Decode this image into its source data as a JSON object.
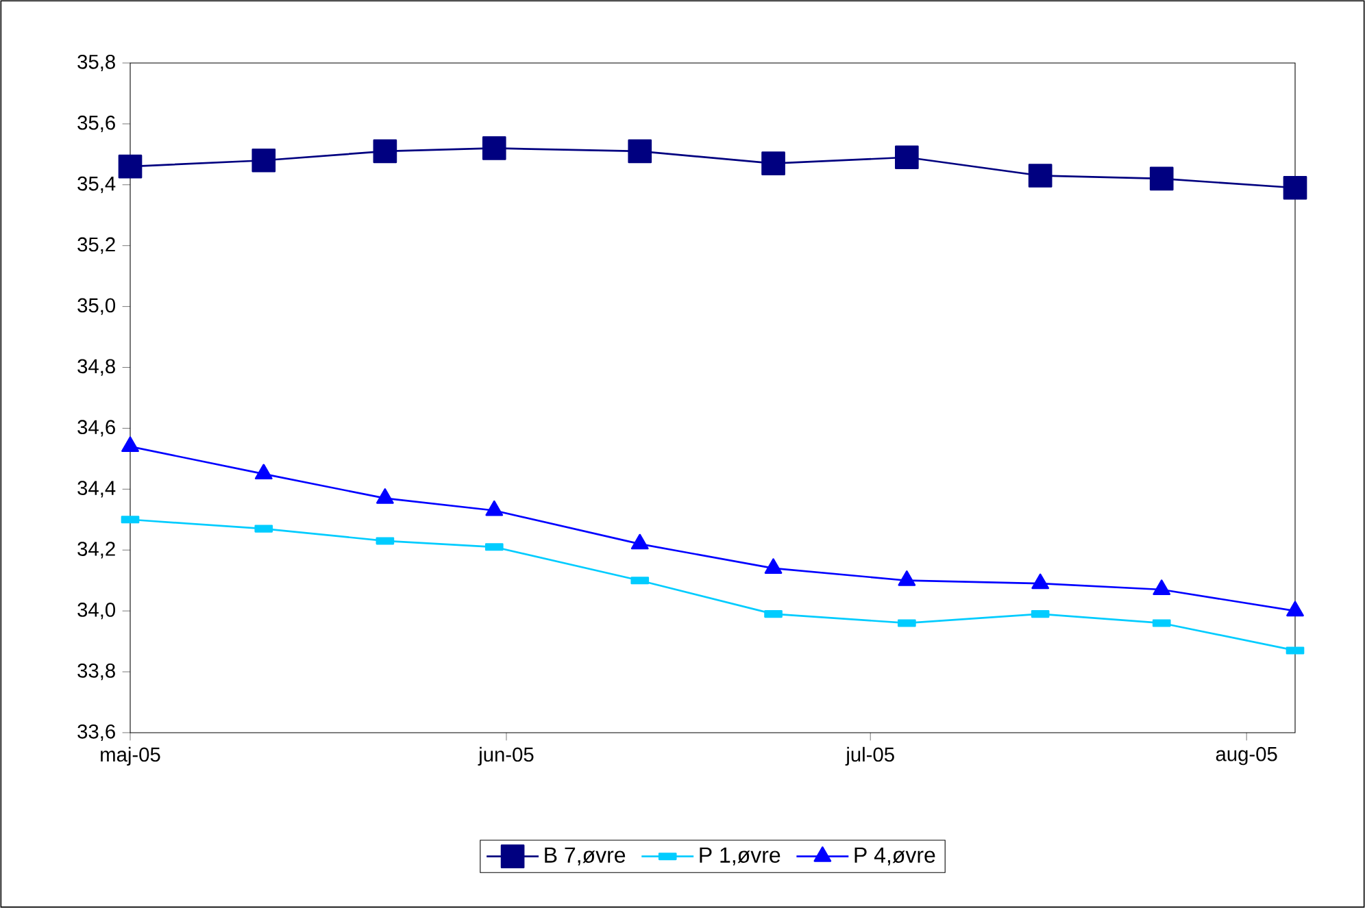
{
  "chart_data": {
    "type": "line",
    "x": [
      "2005-05-01",
      "2005-05-12",
      "2005-05-22",
      "2005-05-31",
      "2005-06-12",
      "2005-06-23",
      "2005-07-04",
      "2005-07-15",
      "2005-07-25",
      "2005-08-05"
    ],
    "series": [
      {
        "name": "B 7,øvre",
        "color": "#000080",
        "marker": "square",
        "values": [
          35.46,
          35.48,
          35.51,
          35.52,
          35.51,
          35.47,
          35.49,
          35.43,
          35.42,
          35.39
        ]
      },
      {
        "name": "P 1,øvre",
        "color": "#00ccff",
        "marker": "square",
        "values": [
          34.3,
          34.27,
          34.23,
          34.21,
          34.1,
          33.99,
          33.96,
          33.99,
          33.96,
          33.87
        ]
      },
      {
        "name": "P 4,øvre",
        "color": "#0000ff",
        "marker": "triangle",
        "values": [
          34.54,
          34.45,
          34.37,
          34.33,
          34.22,
          34.14,
          34.1,
          34.09,
          34.07,
          34.0
        ]
      }
    ],
    "xlim": [
      "2005-05-01",
      "2005-08-05"
    ],
    "xticks": [
      {
        "value": "2005-05-01",
        "label": "maj-05"
      },
      {
        "value": "2005-06-01",
        "label": "jun-05"
      },
      {
        "value": "2005-07-01",
        "label": "jul-05"
      },
      {
        "value": "2005-08-01",
        "label": "aug-05"
      }
    ],
    "ylim": [
      33.6,
      35.8
    ],
    "yticks": [
      {
        "value": 33.6,
        "label": "33,6"
      },
      {
        "value": 33.8,
        "label": "33,8"
      },
      {
        "value": 34.0,
        "label": "34,0"
      },
      {
        "value": 34.2,
        "label": "34,2"
      },
      {
        "value": 34.4,
        "label": "34,4"
      },
      {
        "value": 34.6,
        "label": "34,6"
      },
      {
        "value": 34.8,
        "label": "34,8"
      },
      {
        "value": 35.0,
        "label": "35,0"
      },
      {
        "value": 35.2,
        "label": "35,2"
      },
      {
        "value": 35.4,
        "label": "35,4"
      },
      {
        "value": 35.6,
        "label": "35,6"
      },
      {
        "value": 35.8,
        "label": "35,8"
      }
    ],
    "grid": false,
    "legend": "bottom",
    "line_style": "solid"
  }
}
